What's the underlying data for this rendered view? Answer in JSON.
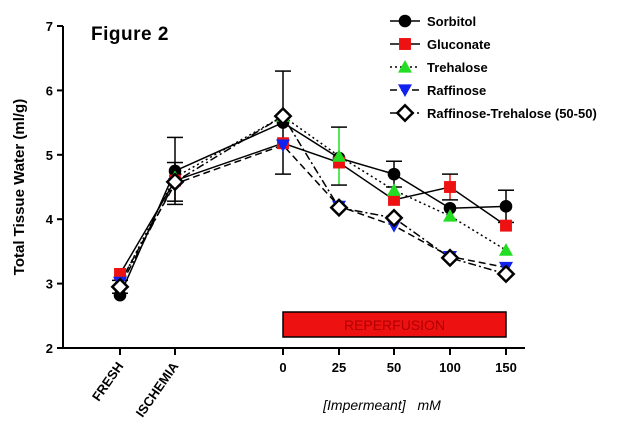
{
  "chart_data": {
    "type": "line",
    "title": "Figure 2",
    "ylabel": "Total Tissue Water (ml/g)",
    "xlabel_prefix": "[Impermeant]",
    "xlabel_unit": "mM",
    "ylim": [
      2,
      7
    ],
    "yticks": [
      "2",
      "3",
      "4",
      "5",
      "6",
      "7"
    ],
    "categories": [
      "FRESH",
      "ISCHEMIA",
      "0",
      "25",
      "50",
      "100",
      "150"
    ],
    "rotated_categories": [
      "FRESH",
      "ISCHEMIA"
    ],
    "band": {
      "label": "REPERFUSION",
      "from": "0",
      "to": "150",
      "color": "#ee1111"
    },
    "legend_position": "top-right",
    "grid": false,
    "series": [
      {
        "name": "Sorbitol",
        "color": "#000000",
        "marker": "circle",
        "line": "solid",
        "values": [
          2.82,
          4.75,
          5.5,
          4.95,
          4.7,
          4.17,
          4.2
        ],
        "errors": [
          0,
          0.52,
          0.8,
          0,
          0.2,
          0,
          0.25
        ]
      },
      {
        "name": "Gluconate",
        "color": "#ee1111",
        "marker": "square",
        "line": "solid",
        "values": [
          3.15,
          4.6,
          5.18,
          4.88,
          4.3,
          4.5,
          3.9
        ],
        "errors": [
          0,
          0,
          0,
          0,
          0,
          0.2,
          0
        ]
      },
      {
        "name": "Trehalose",
        "color": "#22dd22",
        "marker": "triangle-up",
        "line": "dotted",
        "values": [
          3.0,
          4.65,
          5.6,
          4.98,
          4.45,
          4.05,
          3.52
        ],
        "errors": [
          0,
          0,
          0,
          0.45,
          0,
          0,
          0
        ]
      },
      {
        "name": "Raffinose",
        "color": "#1122ee",
        "marker": "triangle-down",
        "line": "dashed",
        "values": [
          3.02,
          4.55,
          5.15,
          4.2,
          3.9,
          3.42,
          3.25
        ],
        "errors": [
          0,
          0,
          0,
          0,
          0,
          0,
          0
        ]
      },
      {
        "name": "Raffinose-Trehalose (50-50)",
        "color": "#000000",
        "marker": "diamond",
        "line": "dashdot",
        "values": [
          2.95,
          4.58,
          5.6,
          4.18,
          4.02,
          3.4,
          3.15
        ],
        "errors": [
          0.1,
          0.3,
          0,
          0,
          0,
          0,
          0
        ]
      }
    ]
  }
}
